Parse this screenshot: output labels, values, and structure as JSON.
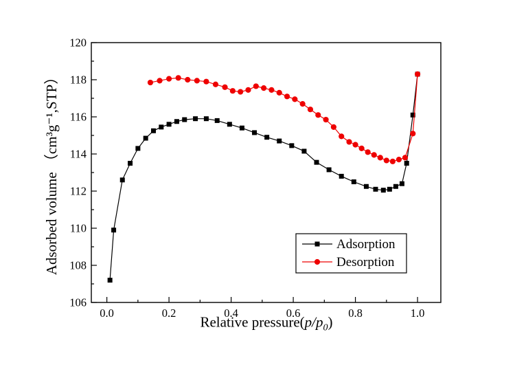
{
  "figure": {
    "background": "#ffffff",
    "xlabel_parts": {
      "prefix": "Relative pressure(",
      "italic": "p/p",
      "sub": "0",
      "suffix": ")"
    },
    "ylabel_text": "Adsorbed volume （cm³g⁻¹,STP）"
  },
  "chart_data": {
    "type": "line",
    "title": "",
    "xlabel": "Relative pressure(p/p0)",
    "ylabel": "Adsorbed volume (cm3 g-1, STP)",
    "xlim": [
      -0.05,
      1.075
    ],
    "ylim": [
      106,
      120
    ],
    "x_major_ticks": [
      0.0,
      0.2,
      0.4,
      0.6,
      0.8,
      1.0
    ],
    "x_tick_labels": [
      "0.0",
      "0.2",
      "0.4",
      "0.6",
      "0.8",
      "1.0"
    ],
    "x_minor_step": 0.1,
    "y_major_ticks": [
      106,
      108,
      110,
      112,
      114,
      116,
      118,
      120
    ],
    "y_tick_labels": [
      "106",
      "108",
      "110",
      "112",
      "114",
      "116",
      "118",
      "120"
    ],
    "y_minor_step": 1,
    "grid": false,
    "legend": {
      "position": "inside-lower-right",
      "border": true,
      "entries": [
        "Adsorption",
        "Desorption"
      ]
    },
    "series": [
      {
        "name": "Adsorption",
        "color": "#000000",
        "marker": "square",
        "points": [
          [
            0.01,
            107.2
          ],
          [
            0.022,
            109.9
          ],
          [
            0.05,
            112.6
          ],
          [
            0.075,
            113.5
          ],
          [
            0.1,
            114.3
          ],
          [
            0.125,
            114.85
          ],
          [
            0.15,
            115.25
          ],
          [
            0.175,
            115.45
          ],
          [
            0.2,
            115.6
          ],
          [
            0.225,
            115.75
          ],
          [
            0.25,
            115.85
          ],
          [
            0.285,
            115.9
          ],
          [
            0.32,
            115.9
          ],
          [
            0.355,
            115.8
          ],
          [
            0.395,
            115.6
          ],
          [
            0.435,
            115.4
          ],
          [
            0.475,
            115.15
          ],
          [
            0.515,
            114.9
          ],
          [
            0.555,
            114.7
          ],
          [
            0.595,
            114.45
          ],
          [
            0.635,
            114.15
          ],
          [
            0.675,
            113.55
          ],
          [
            0.715,
            113.15
          ],
          [
            0.755,
            112.8
          ],
          [
            0.795,
            112.5
          ],
          [
            0.835,
            112.25
          ],
          [
            0.865,
            112.1
          ],
          [
            0.89,
            112.05
          ],
          [
            0.91,
            112.1
          ],
          [
            0.93,
            112.25
          ],
          [
            0.95,
            112.4
          ],
          [
            0.965,
            113.5
          ],
          [
            0.985,
            116.1
          ],
          [
            1.0,
            118.3
          ]
        ]
      },
      {
        "name": "Desorption",
        "color": "#ee0000",
        "marker": "circle",
        "points": [
          [
            1.0,
            118.3
          ],
          [
            0.985,
            115.1
          ],
          [
            0.96,
            113.8
          ],
          [
            0.94,
            113.7
          ],
          [
            0.92,
            113.6
          ],
          [
            0.9,
            113.65
          ],
          [
            0.88,
            113.8
          ],
          [
            0.86,
            113.95
          ],
          [
            0.84,
            114.1
          ],
          [
            0.82,
            114.3
          ],
          [
            0.8,
            114.5
          ],
          [
            0.78,
            114.65
          ],
          [
            0.755,
            114.95
          ],
          [
            0.73,
            115.45
          ],
          [
            0.705,
            115.85
          ],
          [
            0.68,
            116.1
          ],
          [
            0.655,
            116.4
          ],
          [
            0.63,
            116.7
          ],
          [
            0.605,
            116.95
          ],
          [
            0.58,
            117.1
          ],
          [
            0.555,
            117.3
          ],
          [
            0.53,
            117.45
          ],
          [
            0.505,
            117.55
          ],
          [
            0.48,
            117.65
          ],
          [
            0.455,
            117.45
          ],
          [
            0.43,
            117.35
          ],
          [
            0.405,
            117.4
          ],
          [
            0.38,
            117.6
          ],
          [
            0.35,
            117.75
          ],
          [
            0.32,
            117.9
          ],
          [
            0.29,
            117.95
          ],
          [
            0.26,
            118.0
          ],
          [
            0.23,
            118.1
          ],
          [
            0.2,
            118.05
          ],
          [
            0.17,
            117.95
          ],
          [
            0.14,
            117.85
          ]
        ]
      }
    ]
  }
}
